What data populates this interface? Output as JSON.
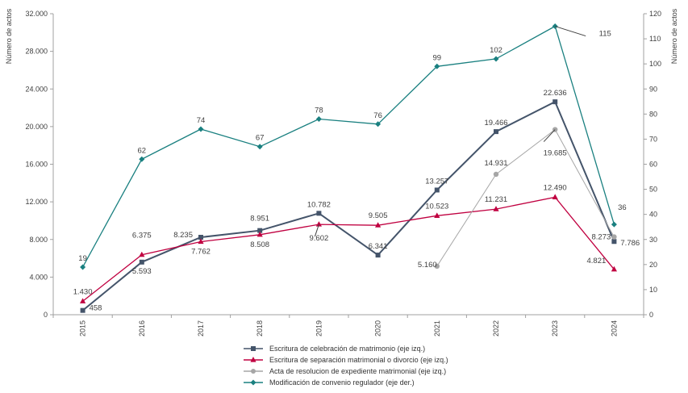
{
  "chart_data": {
    "type": "line",
    "ylabel_left": "Número de actos",
    "ylabel_right": "Número de actos",
    "categories": [
      "2015",
      "2016",
      "2017",
      "2018",
      "2019",
      "2020",
      "2021",
      "2022",
      "2023",
      "2024"
    ],
    "ylim_left": [
      0,
      32000
    ],
    "yticks_left": [
      0,
      4000,
      8000,
      12000,
      16000,
      20000,
      24000,
      28000,
      32000
    ],
    "ytick_labels_left": [
      "0",
      "4.000",
      "8.000",
      "12.000",
      "16.000",
      "20.000",
      "24.000",
      "28.000",
      "32.000"
    ],
    "ylim_right": [
      0,
      120
    ],
    "yticks_right": [
      0,
      10,
      20,
      30,
      40,
      50,
      60,
      70,
      80,
      90,
      100,
      110,
      120
    ],
    "ytick_labels_right": [
      "0",
      "10",
      "20",
      "30",
      "40",
      "50",
      "60",
      "70",
      "80",
      "90",
      "100",
      "110",
      "120"
    ],
    "grid": false,
    "legend_position": "bottom-center",
    "series": [
      {
        "name": "Escritura de celebración de matrimonio (eje izq.)",
        "axis": "left",
        "color": "#44546a",
        "marker": "square",
        "values": [
          458,
          5593,
          8235,
          8951,
          10782,
          6341,
          13257,
          19466,
          22636,
          7786
        ],
        "labels": [
          "458",
          "5.593",
          "8.235",
          "8.951",
          "10.782",
          "6.341",
          "13.257",
          "19.466",
          "22.636",
          "7.786"
        ]
      },
      {
        "name": "Escritura de separación matrimonial o divorcio (eje izq.)",
        "axis": "left",
        "color": "#c00040",
        "marker": "triangle",
        "values": [
          1430,
          6375,
          7762,
          8508,
          9602,
          9505,
          10523,
          11231,
          12490,
          4821
        ],
        "labels": [
          "1.430",
          "6.375",
          "7.762",
          "8.508",
          "9.602",
          "9.505",
          "10.523",
          "11.231",
          "12.490",
          "4.821"
        ]
      },
      {
        "name": "Acta de resolucion de expediente matrimonial (eje izq.)",
        "axis": "left",
        "color": "#a6a6a6",
        "marker": "circle",
        "values": [
          null,
          null,
          null,
          null,
          null,
          null,
          5160,
          14931,
          19685,
          8273
        ],
        "labels": [
          null,
          null,
          null,
          null,
          null,
          null,
          "5.160",
          "14.931",
          "19.685",
          "8.273"
        ]
      },
      {
        "name": "Modificación de convenio regulador (eje der.)",
        "axis": "right",
        "color": "#1a8080",
        "marker": "diamond",
        "values": [
          19,
          62,
          74,
          67,
          78,
          76,
          99,
          102,
          115,
          36
        ],
        "labels": [
          "19",
          "62",
          "74",
          "67",
          "78",
          "76",
          "99",
          "102",
          "115",
          "36"
        ]
      }
    ]
  }
}
